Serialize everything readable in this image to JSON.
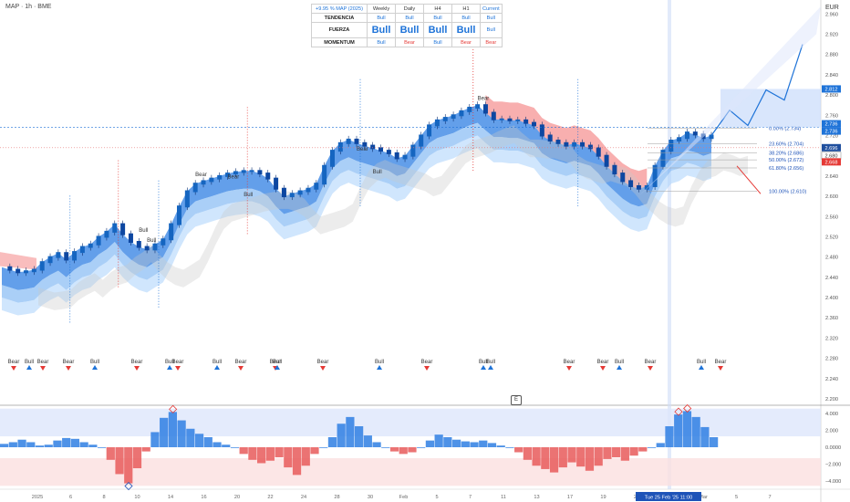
{
  "symbol_label": "MAP · 1h · BME",
  "currency": "EUR",
  "status_table": {
    "header": [
      "+9.95 % MAP (2025)",
      "Weekly",
      "Daily",
      "H4",
      "H1",
      "Current"
    ],
    "rows": [
      {
        "label": "TENDENCIA",
        "cells": [
          "Bull",
          "Bull",
          "Bull",
          "Bull",
          "Bull"
        ],
        "kinds": [
          "bull",
          "bull",
          "bull",
          "bull",
          "bull"
        ]
      },
      {
        "label": "FUERZA",
        "cells": [
          "Bull",
          "Bull",
          "Bull",
          "Bull",
          "Bull"
        ],
        "kinds": [
          "big",
          "big",
          "big",
          "big",
          "small"
        ]
      },
      {
        "label": "MOMENTUM",
        "cells": [
          "Bull",
          "Bear",
          "Bull",
          "Bear",
          "Bear"
        ],
        "kinds": [
          "bull",
          "bear",
          "bull",
          "bear",
          "bear"
        ]
      }
    ]
  },
  "e_button": "E",
  "colors": {
    "bull": "#1e73d8",
    "bear": "#e53935",
    "price_tag_dark": "#1f4f9e",
    "candle_up": "#1565c0",
    "candle_down": "#0d47a1"
  },
  "chart_data": {
    "type": "line",
    "title": "",
    "price_axis": {
      "ticks": [
        "2.960",
        "2.920",
        "2.880",
        "2.840",
        "2.800",
        "2.760",
        "2.720",
        "2.680",
        "2.640",
        "2.600",
        "2.560",
        "2.520",
        "2.480",
        "2.440",
        "2.400",
        "2.360",
        "2.320",
        "2.280",
        "2.240",
        "2.200"
      ],
      "ylim": [
        2.2,
        2.975
      ]
    },
    "price_tags": [
      {
        "value": "2.812",
        "color": "#1e73d8"
      },
      {
        "value": "2.736",
        "color": "#1e73d8"
      },
      {
        "value": "2.736",
        "color": "#1e73d8"
      },
      {
        "value": "2.696",
        "color": "#1f4f9e"
      },
      {
        "value": "2.680",
        "color": "#ffffff"
      },
      {
        "value": "2.668",
        "color": "#e53935"
      }
    ],
    "oscillator_axis": {
      "ticks": [
        "4.000",
        "2.000",
        "0.0000",
        "−2.000",
        "−4.000"
      ],
      "ylim": [
        -5,
        5
      ]
    },
    "x_axis": {
      "ticks": [
        "2025",
        "6",
        "8",
        "10",
        "14",
        "16",
        "20",
        "22",
        "24",
        "28",
        "30",
        "Feb",
        "5",
        "7",
        "11",
        "13",
        "17",
        "19",
        "21",
        "25",
        "Mar",
        "5",
        "7"
      ],
      "cursor_label": "Tue 25 Feb '25  11:00"
    },
    "close_series": [
      2.46,
      2.455,
      2.45,
      2.452,
      2.455,
      2.47,
      2.48,
      2.488,
      2.475,
      2.49,
      2.5,
      2.505,
      2.52,
      2.53,
      2.545,
      2.525,
      2.51,
      2.5,
      2.495,
      2.505,
      2.515,
      2.545,
      2.58,
      2.61,
      2.625,
      2.63,
      2.635,
      2.64,
      2.645,
      2.648,
      2.65,
      2.65,
      2.645,
      2.635,
      2.615,
      2.6,
      2.605,
      2.61,
      2.615,
      2.625,
      2.66,
      2.69,
      2.705,
      2.712,
      2.705,
      2.7,
      2.695,
      2.69,
      2.685,
      2.675,
      2.68,
      2.7,
      2.72,
      2.74,
      2.75,
      2.755,
      2.76,
      2.768,
      2.775,
      2.78,
      2.765,
      2.752,
      2.752,
      2.75,
      2.75,
      2.745,
      2.74,
      2.72,
      2.71,
      2.705,
      2.7,
      2.705,
      2.7,
      2.695,
      2.68,
      2.66,
      2.645,
      2.63,
      2.62,
      2.615,
      2.62,
      2.66,
      2.69,
      2.71,
      2.715,
      2.726,
      2.722,
      2.715,
      2.72
    ],
    "fibonacci": [
      {
        "label": "0.00% (2.734)",
        "value": 2.734
      },
      {
        "label": "23.60% (2.704)",
        "value": 2.704
      },
      {
        "label": "38.20% (2.686)",
        "value": 2.686
      },
      {
        "label": "50.00% (2.672)",
        "value": 2.672
      },
      {
        "label": "61.80% (2.656)",
        "value": 2.656
      },
      {
        "label": "100.00% (2.610)",
        "value": 2.61
      }
    ],
    "projection": [
      2.72,
      2.77,
      2.74,
      2.81,
      2.79,
      2.9
    ],
    "signals": [
      {
        "label": "Bear",
        "kind": "bear"
      },
      {
        "label": "Bull",
        "kind": "bull"
      },
      {
        "label": "Bear",
        "kind": "bear"
      },
      {
        "label": "Bear",
        "kind": "bear"
      },
      {
        "label": "Bull",
        "kind": "bull"
      },
      {
        "label": "Bear",
        "kind": "bear"
      },
      {
        "label": "Bull",
        "kind": "bull"
      },
      {
        "label": "Bear",
        "kind": "bear"
      },
      {
        "label": "Bull",
        "kind": "bull"
      },
      {
        "label": "Bear",
        "kind": "bear"
      },
      {
        "label": "Bear",
        "kind": "bear"
      },
      {
        "label": "Bull",
        "kind": "bull"
      },
      {
        "label": "Bear",
        "kind": "bear"
      },
      {
        "label": "Bull",
        "kind": "bull"
      },
      {
        "label": "Bear",
        "kind": "bear"
      },
      {
        "label": "Bull",
        "kind": "bull"
      },
      {
        "label": "Bull",
        "kind": "bull"
      },
      {
        "label": "Bear",
        "kind": "bear"
      },
      {
        "label": "Bear",
        "kind": "bear"
      },
      {
        "label": "Bull",
        "kind": "bull"
      },
      {
        "label": "Bear",
        "kind": "bear"
      },
      {
        "label": "Bull",
        "kind": "bull"
      },
      {
        "label": "Bear",
        "kind": "bear"
      }
    ],
    "chart_labels": [
      {
        "label": "Bear"
      },
      {
        "label": "Bull"
      },
      {
        "label": "Bull"
      },
      {
        "label": "Bear"
      },
      {
        "label": "Bull"
      },
      {
        "label": "Bear"
      },
      {
        "label": "Bull"
      },
      {
        "label": "Bear"
      }
    ],
    "oscillator": [
      0.4,
      0.6,
      0.9,
      0.6,
      0.2,
      0.3,
      0.8,
      1.1,
      1.0,
      0.6,
      0.3,
      0,
      -1.5,
      -3.2,
      -4.3,
      -2.5,
      -0.5,
      1.8,
      3.5,
      4.2,
      3.2,
      2.2,
      1.6,
      1.2,
      0.6,
      0.3,
      0,
      -0.8,
      -1.5,
      -1.9,
      -1.6,
      -1.2,
      -2.4,
      -3.3,
      -2.2,
      -0.8,
      0,
      1.2,
      2.8,
      3.6,
      2.5,
      1.4,
      0.6,
      0,
      -0.5,
      -0.8,
      -0.6,
      0,
      0.8,
      1.5,
      1.2,
      0.9,
      0.7,
      0.6,
      0.8,
      0.5,
      0.2,
      0,
      -0.6,
      -1.5,
      -2.2,
      -2.6,
      -3.0,
      -2.4,
      -1.8,
      -2.3,
      -2.8,
      -2.2,
      -1.4,
      -1.2,
      -1.6,
      -1.0,
      -0.5,
      0,
      0.5,
      2.5,
      3.9,
      4.3,
      3.6,
      2.4,
      1.2
    ]
  }
}
